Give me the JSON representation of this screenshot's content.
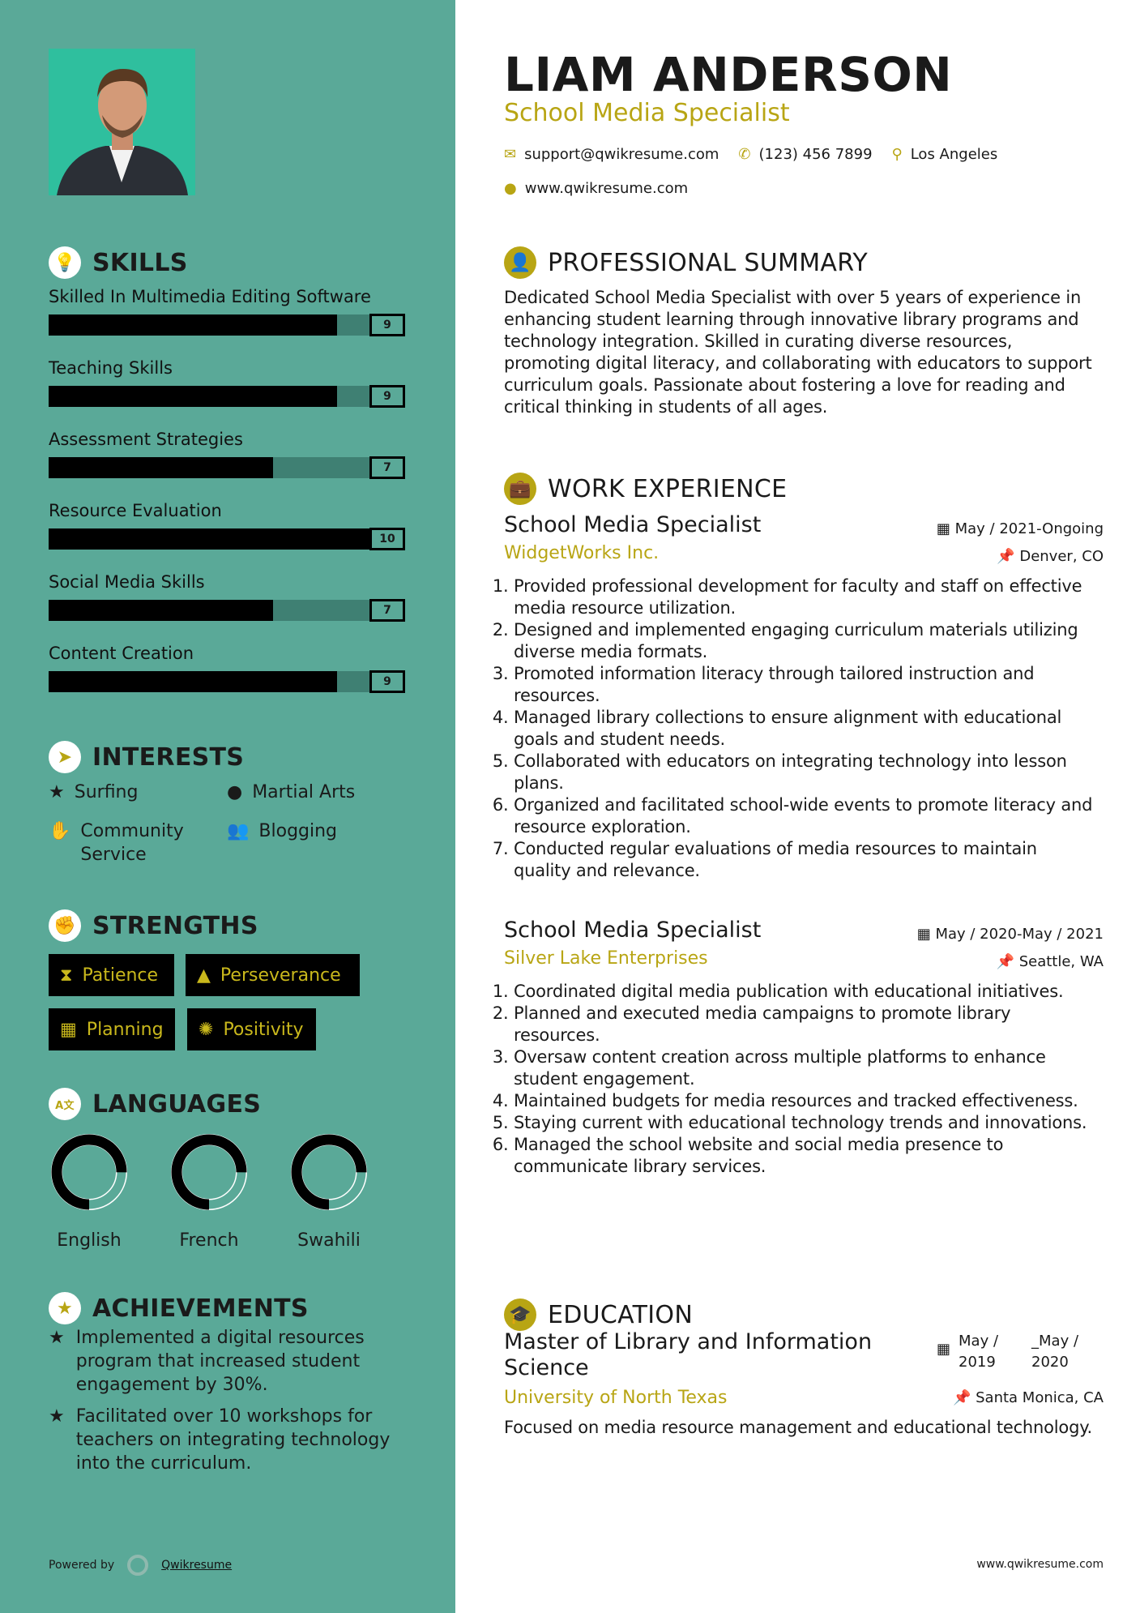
{
  "header": {
    "name": "LIAM ANDERSON",
    "title": "School Media Specialist",
    "email": "support@qwikresume.com",
    "phone": "(123) 456 7899",
    "location": "Los Angeles",
    "website": "www.qwikresume.com"
  },
  "colors": {
    "sidebar": "#5aa998",
    "accent": "#b8a514",
    "dark": "#000000"
  },
  "skills": {
    "heading": "SKILLS",
    "max": 10,
    "items": [
      {
        "label": "Skilled In Multimedia Editing Software",
        "value": 9
      },
      {
        "label": "Teaching Skills",
        "value": 9
      },
      {
        "label": "Assessment Strategies",
        "value": 7
      },
      {
        "label": "Resource Evaluation",
        "value": 10
      },
      {
        "label": "Social Media Skills",
        "value": 7
      },
      {
        "label": "Content Creation",
        "value": 9
      }
    ]
  },
  "interests": {
    "heading": "INTERESTS",
    "items": [
      {
        "label": "Surfing",
        "icon": "star-icon"
      },
      {
        "label": "Martial Arts",
        "icon": "globe-icon"
      },
      {
        "label": "Community Service",
        "icon": "hand-icon"
      },
      {
        "label": "Blogging",
        "icon": "users-icon"
      }
    ]
  },
  "strengths": {
    "heading": "STRENGTHS",
    "items": [
      {
        "label": "Patience",
        "icon": "hourglass-icon"
      },
      {
        "label": "Perseverance",
        "icon": "road-icon"
      },
      {
        "label": "Planning",
        "icon": "calendar-icon"
      },
      {
        "label": "Positivity",
        "icon": "sun-icon"
      }
    ]
  },
  "languages": {
    "heading": "LANGUAGES",
    "items": [
      {
        "label": "English",
        "level": 0.75
      },
      {
        "label": "French",
        "level": 0.75
      },
      {
        "label": "Swahili",
        "level": 0.75
      }
    ]
  },
  "achievements": {
    "heading": "ACHIEVEMENTS",
    "items": [
      "Implemented a digital resources program that increased student engagement by 30%.",
      "Facilitated over 10 workshops for teachers on integrating technology into the curriculum."
    ]
  },
  "summary": {
    "heading": "PROFESSIONAL SUMMARY",
    "text": "Dedicated School Media Specialist with over 5 years of experience in enhancing student learning through innovative library programs and technology integration. Skilled in curating diverse resources, promoting digital literacy, and collaborating with educators to support curriculum goals. Passionate about fostering a love for reading and critical thinking in students of all ages."
  },
  "experience": {
    "heading": "WORK EXPERIENCE",
    "jobs": [
      {
        "title": "School Media Specialist",
        "company": "WidgetWorks Inc.",
        "dates": "May / 2021-Ongoing",
        "location": "Denver, CO",
        "bullets": [
          "Provided professional development for faculty and staff on effective media resource utilization.",
          "Designed and implemented engaging curriculum materials utilizing diverse media formats.",
          "Promoted information literacy through tailored instruction and resources.",
          "Managed library collections to ensure alignment with educational goals and student needs.",
          "Collaborated with educators on integrating technology into lesson plans.",
          "Organized and facilitated school-wide events to promote literacy and resource exploration.",
          "Conducted regular evaluations of media resources to maintain quality and relevance."
        ]
      },
      {
        "title": "School Media Specialist",
        "company": "Silver Lake Enterprises",
        "dates": "May / 2020-May / 2021",
        "location": "Seattle, WA",
        "bullets": [
          "Coordinated digital media publication with educational initiatives.",
          "Planned and executed media campaigns to promote library resources.",
          "Oversaw content creation across multiple platforms to enhance student engagement.",
          "Maintained budgets for media resources and tracked effectiveness.",
          "Staying current with educational technology trends and innovations.",
          "Managed the school website and social media presence to communicate library services."
        ]
      }
    ]
  },
  "education": {
    "heading": "EDUCATION",
    "degree": "Master of Library and Information Science",
    "school": "University of North Texas",
    "start": "May / 2019",
    "end": "_May / 2020",
    "location": "Santa Monica, CA",
    "description": "Focused on media resource management and educational technology."
  },
  "footer": {
    "powered": "Powered by",
    "brand": "Qwikresume",
    "site": "www.qwikresume.com"
  }
}
